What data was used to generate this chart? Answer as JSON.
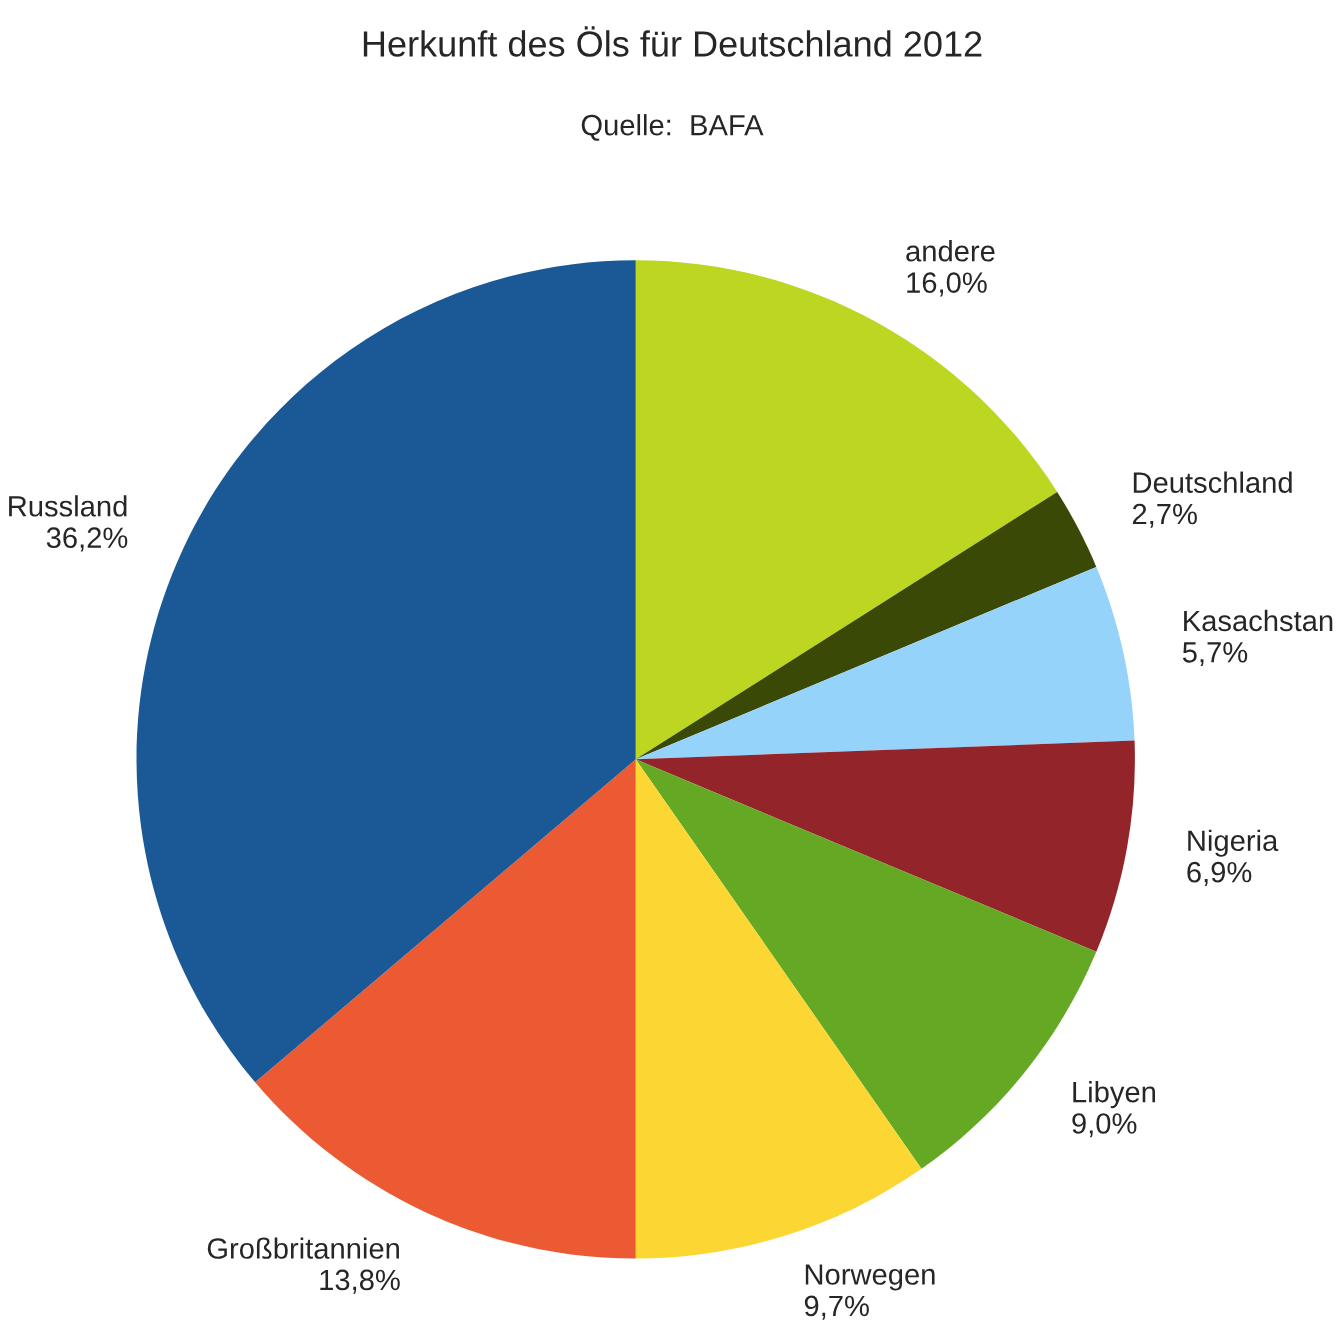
{
  "chart_data": {
    "type": "pie",
    "title": "Herkunft des Öls für Deutschland 2012",
    "subtitle": "Quelle:  BAFA",
    "categories": [
      "andere",
      "Deutschland",
      "Kasachstan",
      "Nigeria",
      "Libyen",
      "Norwegen",
      "Großbritannien",
      "Russland"
    ],
    "values": [
      16.0,
      2.7,
      5.7,
      6.9,
      9.0,
      9.7,
      13.8,
      36.2
    ],
    "value_labels": [
      "16,0%",
      "2,7%",
      "5,7%",
      "6,9%",
      "9,0%",
      "9,7%",
      "13,8%",
      "36,2%"
    ],
    "colors": [
      "#bcd621",
      "#3a4a06",
      "#96d3fb",
      "#93242a",
      "#65a823",
      "#fcd633",
      "#ec5a34",
      "#1a5996"
    ],
    "legend": false
  }
}
